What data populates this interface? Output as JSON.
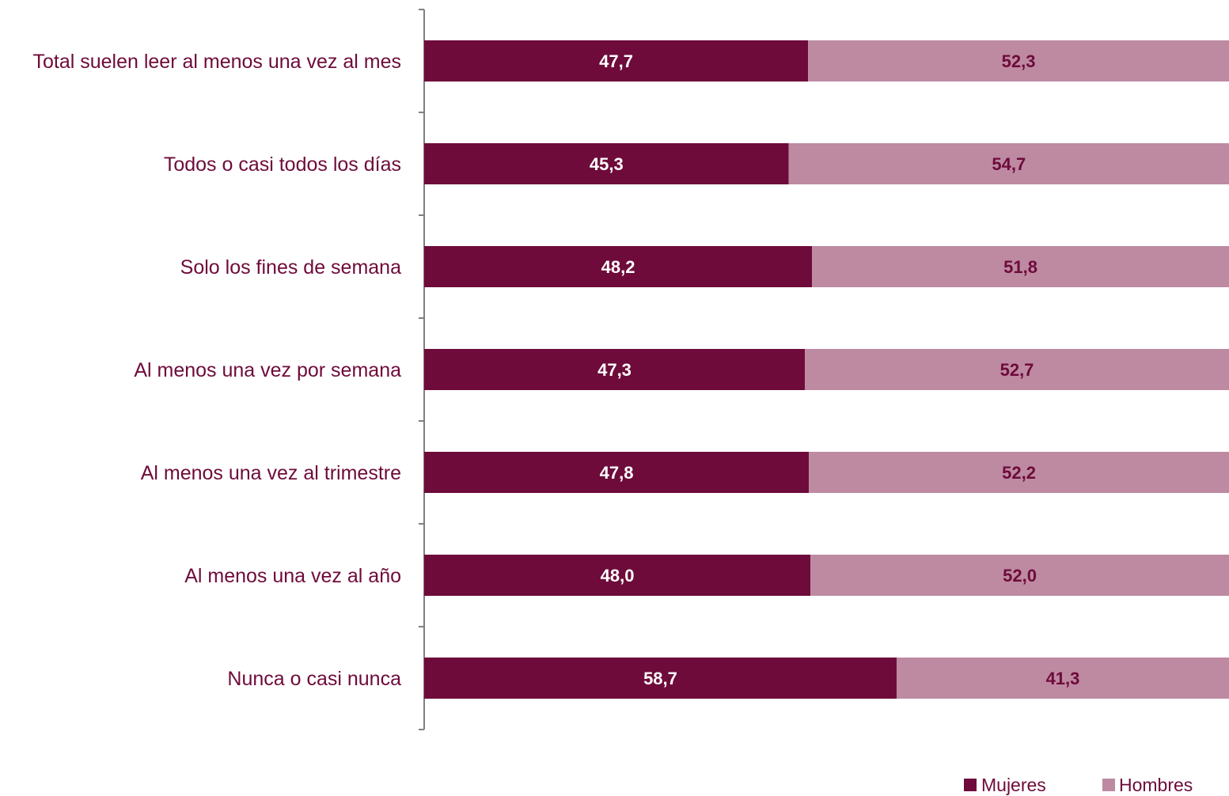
{
  "chart_data": {
    "type": "bar",
    "orientation": "horizontal",
    "stacked": "percent",
    "categories": [
      "Total suelen leer al menos una vez al mes",
      "Todos o casi todos los días",
      "Solo los fines de semana",
      "Al menos una vez por semana",
      "Al menos una vez al trimestre",
      "Al menos una vez al año",
      "Nunca o casi nunca"
    ],
    "series": [
      {
        "name": "Mujeres",
        "color": "#6e0b3a",
        "label_color": "#ffffff",
        "values": [
          47.7,
          45.3,
          48.2,
          47.3,
          47.8,
          48.0,
          58.7
        ],
        "labels": [
          "47,7",
          "45,3",
          "48,2",
          "47,3",
          "47,8",
          "48,0",
          "58,7"
        ]
      },
      {
        "name": "Hombres",
        "color": "#bd8aa2",
        "label_color": "#6e0b3a",
        "values": [
          52.3,
          54.7,
          51.8,
          52.7,
          52.2,
          52.0,
          41.3
        ],
        "labels": [
          "52,3",
          "54,7",
          "51,8",
          "52,7",
          "52,2",
          "52,0",
          "41,3"
        ]
      }
    ],
    "xlim": [
      0,
      100
    ],
    "grid": false,
    "legend": "bottom-right",
    "category_label_color": "#6e0b3a",
    "axis_color": "#808080"
  }
}
